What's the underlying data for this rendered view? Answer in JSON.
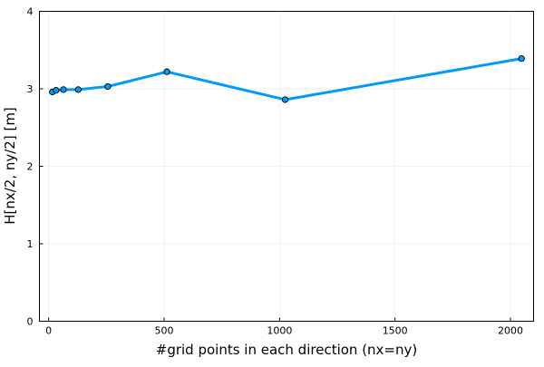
{
  "chart_data": {
    "type": "line",
    "xlabel": "#grid points in each direction (nx=ny)",
    "ylabel": "H[nx/2, ny/2] [m]",
    "xlim": [
      -40,
      2100
    ],
    "ylim": [
      0,
      4
    ],
    "xticks": [
      0,
      500,
      1000,
      1500,
      2000
    ],
    "yticks": [
      0,
      1,
      2,
      3,
      4
    ],
    "grid": true,
    "legend": "none",
    "series": [
      {
        "color": "#009af9",
        "marker": "circle",
        "x": [
          16,
          32,
          64,
          128,
          256,
          512,
          1024,
          2048
        ],
        "y": [
          2.96,
          2.98,
          2.99,
          2.99,
          3.03,
          3.22,
          2.86,
          3.39
        ]
      }
    ]
  }
}
